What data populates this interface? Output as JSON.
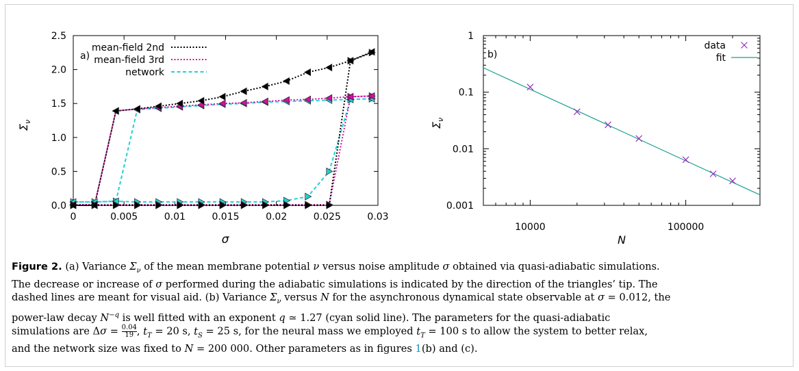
{
  "chart_data": [
    {
      "type": "line",
      "panel_label": "a)",
      "xlabel": "σ",
      "ylabel": "Σ_ν",
      "xlim": [
        0,
        0.03
      ],
      "ylim": [
        0,
        2.5
      ],
      "x_ticks": [
        "0",
        "0.005",
        "0.01",
        "0.015",
        "0.02",
        "0.025",
        "0.03"
      ],
      "x_tick_values": [
        0,
        0.005,
        0.01,
        0.015,
        0.02,
        0.025,
        0.03
      ],
      "y_ticks": [
        "0.0",
        "0.5",
        "1.0",
        "1.5",
        "2.0",
        "2.5"
      ],
      "y_tick_values": [
        0,
        0.5,
        1.0,
        1.5,
        2.0,
        2.5
      ],
      "legend_position": "top-left",
      "series": [
        {
          "name": "mean-field 2nd",
          "color": "#000000",
          "dash": "2,2.5",
          "branches": [
            {
              "direction": "right",
              "x": [
                0,
                0.0021,
                0.0042,
                0.0063,
                0.0084,
                0.0105,
                0.0126,
                0.0147,
                0.0168,
                0.0189,
                0.021,
                0.0231,
                0.0252,
                0.0273,
                0.0294
              ],
              "y": [
                0,
                0,
                0,
                0,
                0,
                0,
                0,
                0,
                0,
                0,
                0,
                0,
                0,
                2.13,
                2.25
              ]
            },
            {
              "direction": "left",
              "x": [
                0.0294,
                0.0273,
                0.0252,
                0.0231,
                0.021,
                0.0189,
                0.0168,
                0.0147,
                0.0126,
                0.0105,
                0.0084,
                0.0063,
                0.0042,
                0.0021,
                0
              ],
              "y": [
                2.26,
                2.13,
                2.03,
                1.96,
                1.83,
                1.75,
                1.68,
                1.6,
                1.54,
                1.5,
                1.46,
                1.42,
                1.39,
                0,
                0
              ]
            }
          ]
        },
        {
          "name": "mean-field 3rd",
          "color": "#d20fa3",
          "dash": "2,2.5",
          "branches": [
            {
              "direction": "right",
              "x": [
                0,
                0.0021,
                0.0042,
                0.0063,
                0.0084,
                0.0105,
                0.0126,
                0.0147,
                0.0168,
                0.0189,
                0.021,
                0.0231,
                0.0252,
                0.0273,
                0.0294
              ],
              "y": [
                0.01,
                0.01,
                0.01,
                0.01,
                0.01,
                0.01,
                0.01,
                0.01,
                0.01,
                0.01,
                0.01,
                0.01,
                0.01,
                1.6,
                1.61
              ]
            },
            {
              "direction": "left",
              "x": [
                0.0294,
                0.0273,
                0.0252,
                0.0231,
                0.021,
                0.0189,
                0.0168,
                0.0147,
                0.0126,
                0.0105,
                0.0084,
                0.0063,
                0.0042,
                0.0021,
                0
              ],
              "y": [
                1.61,
                1.6,
                1.58,
                1.56,
                1.55,
                1.53,
                1.51,
                1.5,
                1.48,
                1.46,
                1.44,
                1.42,
                1.39,
                0.01,
                0.01
              ]
            }
          ]
        },
        {
          "name": "network",
          "color": "#22cfd4",
          "dash": "5,3.5",
          "branches": [
            {
              "direction": "right",
              "x": [
                0,
                0.0021,
                0.0042,
                0.0063,
                0.0084,
                0.0105,
                0.0126,
                0.0147,
                0.0168,
                0.0189,
                0.021,
                0.0231,
                0.0252,
                0.0273,
                0.0294
              ],
              "y": [
                0.05,
                0.05,
                0.06,
                0.05,
                0.05,
                0.05,
                0.05,
                0.05,
                0.05,
                0.05,
                0.07,
                0.13,
                0.5,
                1.56,
                1.57
              ]
            },
            {
              "direction": "left",
              "x": [
                0.0294,
                0.0273,
                0.0252,
                0.0231,
                0.021,
                0.0189,
                0.0168,
                0.0147,
                0.0126,
                0.0105,
                0.0084,
                0.0063,
                0.0042,
                0.0021,
                0
              ],
              "y": [
                1.57,
                1.56,
                1.55,
                1.54,
                1.53,
                1.52,
                1.5,
                1.49,
                1.47,
                1.45,
                1.43,
                1.41,
                0.06,
                0.05,
                0.05
              ]
            }
          ]
        }
      ]
    },
    {
      "type": "scatter",
      "panel_label": "b)",
      "xlabel": "N",
      "ylabel": "Σ_ν",
      "xscale": "log",
      "yscale": "log",
      "xlim": [
        5000,
        300000
      ],
      "ylim": [
        0.001,
        1
      ],
      "x_ticks": [
        "10000",
        "100000"
      ],
      "x_tick_values": [
        10000,
        100000
      ],
      "y_ticks": [
        "0.001",
        "0.01",
        "0.1",
        "1"
      ],
      "y_tick_values": [
        0.001,
        0.01,
        0.1,
        1
      ],
      "legend_position": "top-right",
      "data": {
        "name": "data",
        "color": "#9b2fbf",
        "x": [
          10000,
          20000,
          31623,
          50000,
          100000,
          150000,
          200000
        ],
        "y": [
          0.123,
          0.045,
          0.0265,
          0.0152,
          0.0064,
          0.0036,
          0.0027
        ]
      },
      "fit": {
        "name": "fit",
        "color": "#1a9e90",
        "x": [
          5000,
          300000
        ],
        "y": [
          0.27,
          0.00153
        ]
      }
    }
  ],
  "caption": {
    "label": "Figure 2.",
    "lines": [
      " (a) Variance Σ_ν of the mean membrane potential ν versus noise amplitude σ obtained via quasi-adiabatic simulations.",
      "The decrease or increase of σ performed during the adiabatic simulations is indicated by the direction of the triangles’ tip. The",
      "dashed lines are meant for visual aid. (b) Variance Σ_ν versus N for the asynchronous dynamical state observable at σ = 0.012, the",
      "power-law decay N^−q is well fitted with an exponent q ≃ 1.27 (cyan solid line). The parameters for the quasi-adiabatic",
      "simulations are Δσ = 0.04/19, t_T = 20 s, t_S = 25 s, for the neural mass we employed t_T = 100 s to allow the system to better relax,",
      "and the network size was fixed to N = 200 000. Other parameters as in figures 1(b) and (c)."
    ]
  }
}
